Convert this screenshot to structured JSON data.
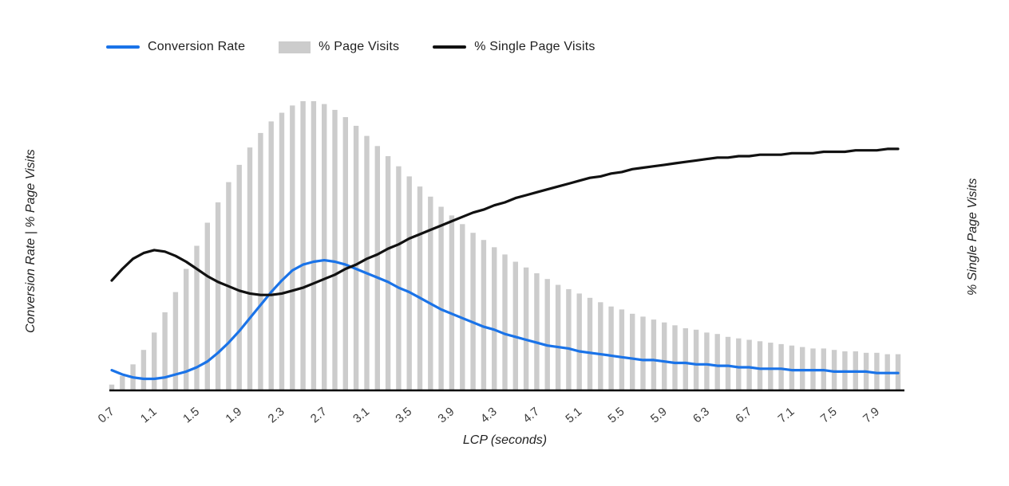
{
  "page": {
    "background": "#ffffff"
  },
  "legend": {
    "items": [
      {
        "label": "Conversion Rate",
        "type": "line",
        "color": "#1a73e8"
      },
      {
        "label": "% Page Visits",
        "type": "bar",
        "color": "#cccccc"
      },
      {
        "label": "% Single Page Visits",
        "type": "line",
        "color": "#111111"
      }
    ]
  },
  "axes": {
    "x_title": "LCP (seconds)",
    "y_left_title": "Conversion Rate | % Page Visits",
    "y_right_title": "% Single Page Visits",
    "x_ticks": [
      "0.7",
      "1.1",
      "1.5",
      "1.9",
      "2.3",
      "2.7",
      "3.1",
      "3.5",
      "3.9",
      "4.3",
      "4.7",
      "5.1",
      "5.5",
      "5.9",
      "6.3",
      "6.7",
      "7.1",
      "7.5",
      "7.9"
    ]
  },
  "chart_data": {
    "type": "bar",
    "subtype": "combo-bar-and-lines",
    "title": "",
    "xlabel": "LCP (seconds)",
    "ylabel_left": "Conversion Rate | % Page Visits",
    "ylabel_right": "% Single Page Visits",
    "x_range": [
      0.7,
      8.1
    ],
    "ylim": [
      0,
      100
    ],
    "grid": false,
    "legend_position": "top",
    "note": "No numeric y-axis shown; values are relative (100 = tallest % Page Visits bar).",
    "x": [
      0.7,
      0.8,
      0.9,
      1.0,
      1.1,
      1.2,
      1.3,
      1.4,
      1.5,
      1.6,
      1.7,
      1.8,
      1.9,
      2.0,
      2.1,
      2.2,
      2.3,
      2.4,
      2.5,
      2.6,
      2.7,
      2.8,
      2.9,
      3.0,
      3.1,
      3.2,
      3.3,
      3.4,
      3.5,
      3.6,
      3.7,
      3.8,
      3.9,
      4.0,
      4.1,
      4.2,
      4.3,
      4.4,
      4.5,
      4.6,
      4.7,
      4.8,
      4.9,
      5.0,
      5.1,
      5.2,
      5.3,
      5.4,
      5.5,
      5.6,
      5.7,
      5.8,
      5.9,
      6.0,
      6.1,
      6.2,
      6.3,
      6.4,
      6.5,
      6.6,
      6.7,
      6.8,
      6.9,
      7.0,
      7.1,
      7.2,
      7.3,
      7.4,
      7.5,
      7.6,
      7.7,
      7.8,
      7.9,
      8.0,
      8.1
    ],
    "series": [
      {
        "name": "% Page Visits",
        "type": "bar",
        "color": "#cccccc",
        "values": [
          2,
          5,
          9,
          14,
          20,
          27,
          34,
          42,
          50,
          58,
          65,
          72,
          78,
          84,
          89,
          93,
          96,
          98.5,
          100,
          100,
          99,
          97,
          94.5,
          91.5,
          88,
          84.5,
          81,
          77.5,
          74,
          70.5,
          67,
          63.5,
          60.5,
          57.5,
          54.5,
          52,
          49.5,
          47,
          44.5,
          42.5,
          40.5,
          38.5,
          36.5,
          35,
          33.5,
          32,
          30.5,
          29,
          28,
          26.5,
          25.5,
          24.5,
          23.5,
          22.5,
          21.5,
          21,
          20,
          19.5,
          18.5,
          18,
          17.5,
          17,
          16.5,
          16,
          15.5,
          15,
          14.5,
          14.5,
          14,
          13.5,
          13.5,
          13,
          13,
          12.5,
          12.5
        ]
      },
      {
        "name": "Conversion Rate",
        "type": "line",
        "color": "#1a73e8",
        "values": [
          7,
          5.5,
          4.5,
          4,
          4,
          4.5,
          5.5,
          6.5,
          8,
          10,
          13,
          16.5,
          20.5,
          25,
          29.5,
          34,
          38,
          41.5,
          43.5,
          44.5,
          45,
          44.5,
          43.5,
          42,
          40.5,
          39,
          37.5,
          35.5,
          34,
          32,
          30,
          28,
          26.5,
          25,
          23.5,
          22,
          21,
          19.5,
          18.5,
          17.5,
          16.5,
          15.5,
          15,
          14.5,
          13.5,
          13,
          12.5,
          12,
          11.5,
          11,
          10.5,
          10.5,
          10,
          9.5,
          9.5,
          9,
          9,
          8.5,
          8.5,
          8,
          8,
          7.5,
          7.5,
          7.5,
          7,
          7,
          7,
          7,
          6.5,
          6.5,
          6.5,
          6.5,
          6,
          6,
          6
        ]
      },
      {
        "name": "% Single Page Visits",
        "type": "line",
        "color": "#111111",
        "values": [
          38,
          42,
          45.5,
          47.5,
          48.5,
          48,
          46.5,
          44.5,
          42,
          39.5,
          37.5,
          36,
          34.5,
          33.5,
          33,
          33,
          33.5,
          34.5,
          35.5,
          37,
          38.5,
          40,
          42,
          43.5,
          45.5,
          47,
          49,
          50.5,
          52.5,
          54,
          55.5,
          57,
          58.5,
          60,
          61.5,
          62.5,
          64,
          65,
          66.5,
          67.5,
          68.5,
          69.5,
          70.5,
          71.5,
          72.5,
          73.5,
          74,
          75,
          75.5,
          76.5,
          77,
          77.5,
          78,
          78.5,
          79,
          79.5,
          80,
          80.5,
          80.5,
          81,
          81,
          81.5,
          81.5,
          81.5,
          82,
          82,
          82,
          82.5,
          82.5,
          82.5,
          83,
          83,
          83,
          83.5,
          83.5
        ]
      }
    ]
  }
}
